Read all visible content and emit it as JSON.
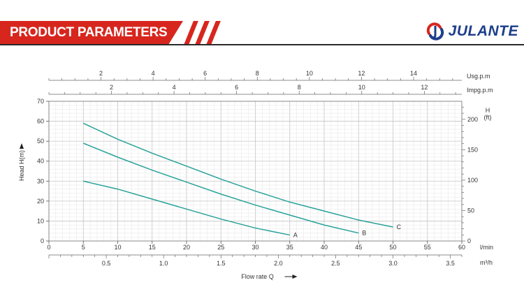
{
  "header": {
    "title": "PRODUCT PARAMETERS",
    "brand": "JULANTE"
  },
  "colors": {
    "accent": "#d7261e",
    "brand": "#1d3e8a",
    "curve": "#2aa39a",
    "grid": "#d4d4d4"
  },
  "chart_data": {
    "type": "line",
    "xlabel": "Flow rate Q",
    "ylabel": "Head H(m)",
    "x_unit": "l/min",
    "xlim": [
      0,
      60
    ],
    "ylim": [
      0,
      70
    ],
    "x_ticks": [
      0,
      5,
      10,
      15,
      20,
      25,
      30,
      35,
      40,
      45,
      50,
      55,
      60
    ],
    "y_ticks": [
      0,
      10,
      20,
      30,
      40,
      50,
      60,
      70
    ],
    "grid": true,
    "series": [
      {
        "name": "A",
        "x": [
          5,
          10,
          15,
          20,
          25,
          30,
          35
        ],
        "y": [
          30,
          26,
          21,
          16,
          11,
          6.5,
          3
        ]
      },
      {
        "name": "B",
        "x": [
          5,
          10,
          15,
          20,
          25,
          30,
          35,
          40,
          45
        ],
        "y": [
          49,
          42,
          35.5,
          29.5,
          23.5,
          18,
          13,
          8,
          4
        ]
      },
      {
        "name": "C",
        "x": [
          5,
          10,
          15,
          20,
          25,
          30,
          35,
          40,
          45,
          50
        ],
        "y": [
          59,
          51,
          44,
          37.5,
          31,
          25,
          19.5,
          15,
          10.5,
          7
        ]
      }
    ],
    "top_axes": [
      {
        "label": "Usg.p.m",
        "ticks": [
          "2",
          "4",
          "6",
          "8",
          "10",
          "12",
          "14"
        ],
        "values": [
          2,
          4,
          6,
          8,
          10,
          12,
          14
        ],
        "lpm_per_unit": 3.785
      },
      {
        "label": "Impg.p.m",
        "ticks": [
          "2",
          "4",
          "6",
          "8",
          "10",
          "12"
        ],
        "values": [
          2,
          4,
          6,
          8,
          10,
          12
        ],
        "lpm_per_unit": 4.546
      }
    ],
    "right_axis": {
      "label": "H",
      "unit": "(ft)",
      "ticks": [
        "0",
        "50",
        "100",
        "150",
        "200"
      ],
      "values": [
        0,
        50,
        100,
        150,
        200
      ],
      "m_per_unit": 0.3048
    },
    "bottom_axis2": {
      "label": "m³/h",
      "ticks": [
        "0.5",
        "1.0",
        "1.5",
        "2.0",
        "2.5",
        "3.0",
        "3.5"
      ],
      "values": [
        0.5,
        1.0,
        1.5,
        2.0,
        2.5,
        3.0,
        3.5
      ],
      "lpm_per_unit": 16.667
    }
  }
}
